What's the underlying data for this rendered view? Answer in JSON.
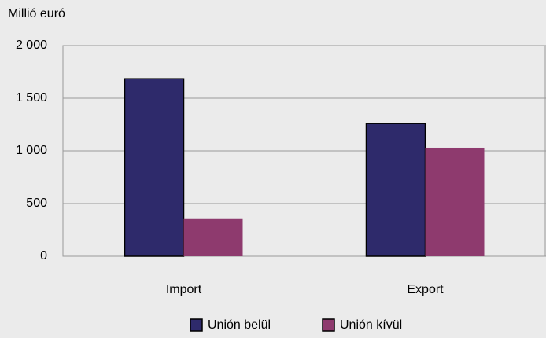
{
  "chart_data": {
    "type": "bar",
    "y_axis_label": "Millió euró",
    "categories": [
      "Import",
      "Export"
    ],
    "series": [
      {
        "name": "Unión belül",
        "color": "#2e2a6b",
        "values": [
          1685,
          1260
        ]
      },
      {
        "name": "Unión kívül",
        "color": "#8e3a6e",
        "values": [
          360,
          1030
        ]
      }
    ],
    "ylim": [
      0,
      2000
    ],
    "yticks": [
      0,
      500,
      {
        "value": 1000,
        "label": "1 000"
      },
      {
        "value": 1500,
        "label": "1 500"
      },
      {
        "value": 2000,
        "label": "2 000"
      }
    ],
    "grid": true,
    "legend": "bottom"
  }
}
